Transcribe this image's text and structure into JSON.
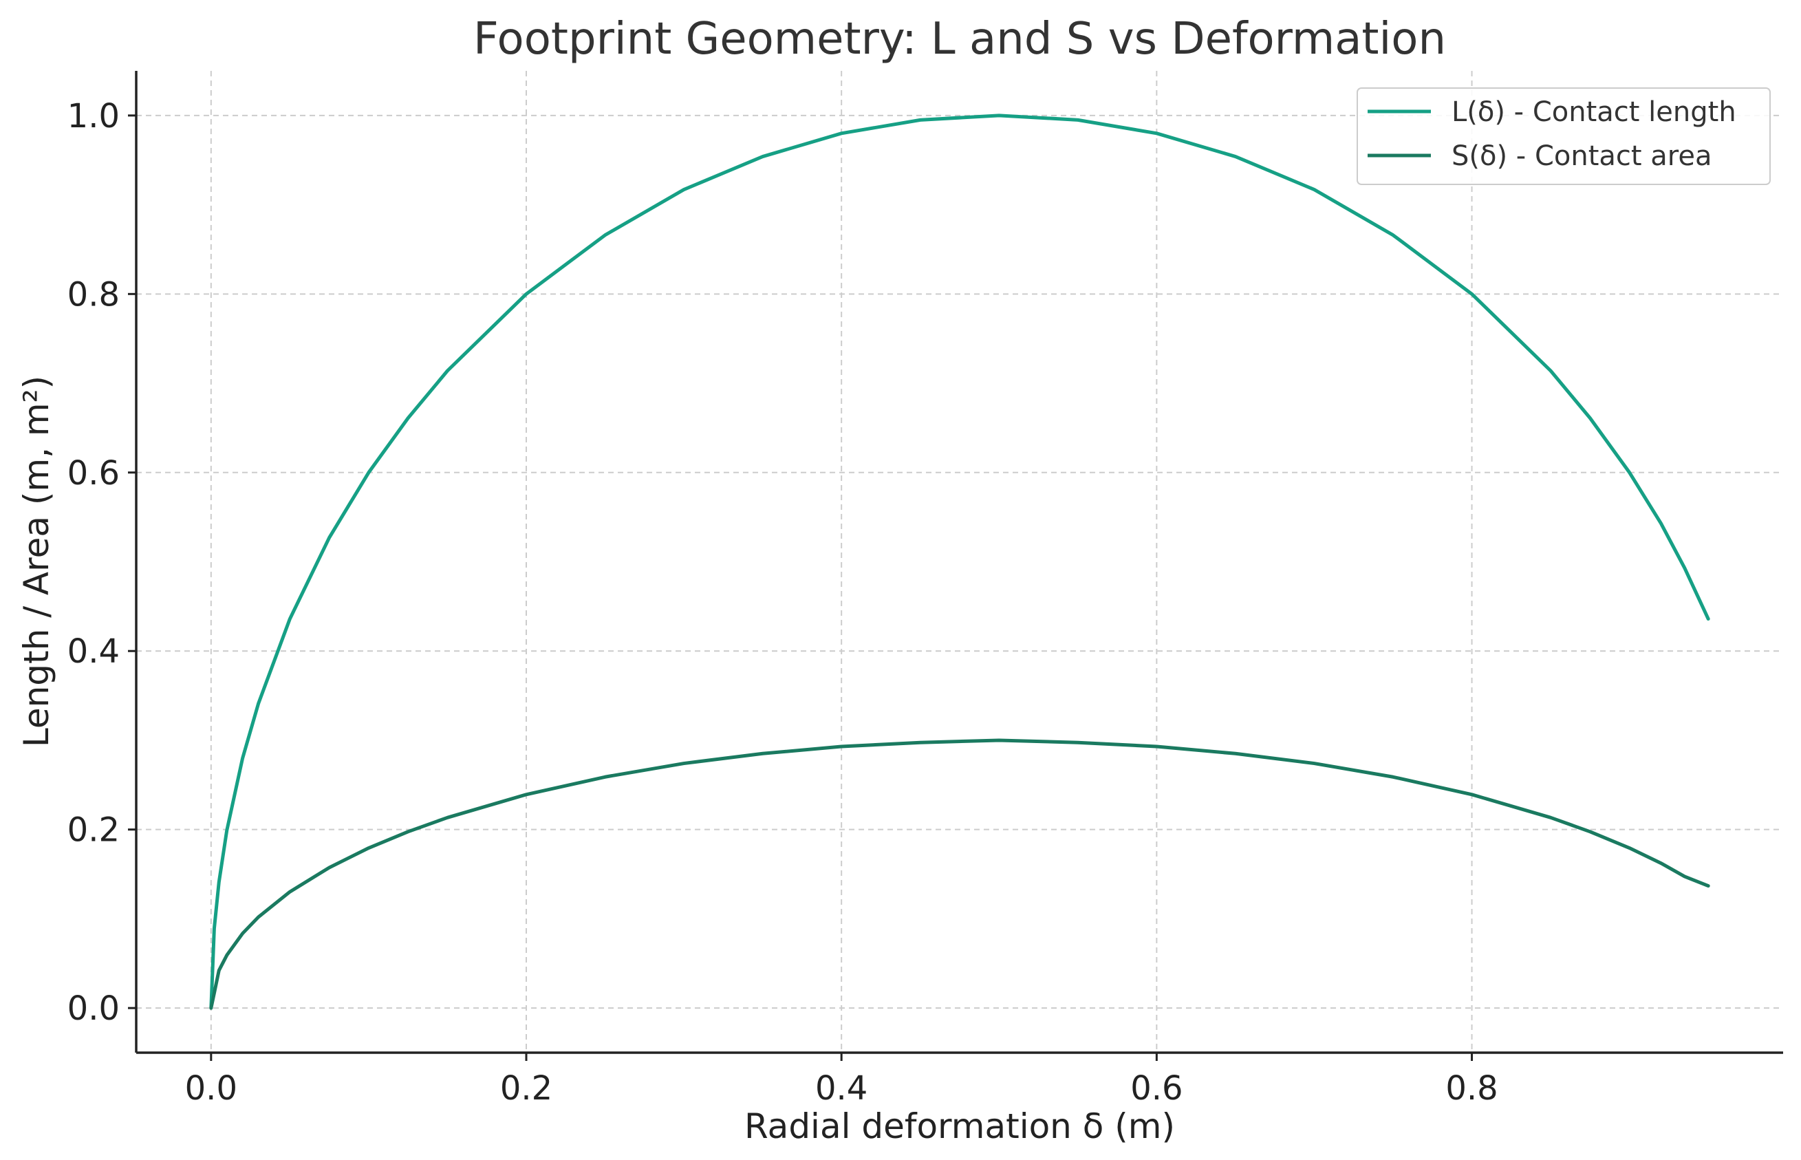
{
  "chart_data": {
    "type": "line",
    "title": "Footprint Geometry: L and S vs Deformation",
    "xlabel": "Radial deformation δ (m)",
    "ylabel": "Length / Area (m, m²)",
    "xlim": [
      -0.0475,
      0.9975
    ],
    "ylim": [
      -0.05,
      1.05
    ],
    "xticks": [
      0.0,
      0.2,
      0.4,
      0.6,
      0.8
    ],
    "xtick_labels": [
      "0.0",
      "0.2",
      "0.4",
      "0.6",
      "0.8"
    ],
    "yticks": [
      0.0,
      0.2,
      0.4,
      0.6,
      0.8,
      1.0
    ],
    "ytick_labels": [
      "0.0",
      "0.2",
      "0.4",
      "0.6",
      "0.8",
      "1.0"
    ],
    "grid": true,
    "legend_position": "top-right",
    "series": [
      {
        "name": "L(δ) - Contact length",
        "color": "#16a085",
        "x": [
          0.0,
          0.002,
          0.005,
          0.01,
          0.02,
          0.03,
          0.05,
          0.075,
          0.1,
          0.125,
          0.15,
          0.2,
          0.25,
          0.3,
          0.35,
          0.4,
          0.45,
          0.5,
          0.55,
          0.6,
          0.65,
          0.7,
          0.75,
          0.8,
          0.85,
          0.875,
          0.9,
          0.92,
          0.935,
          0.95
        ],
        "y": [
          0.0,
          0.089,
          0.141,
          0.199,
          0.28,
          0.341,
          0.436,
          0.527,
          0.6,
          0.661,
          0.714,
          0.8,
          0.866,
          0.917,
          0.954,
          0.98,
          0.995,
          1.0,
          0.995,
          0.98,
          0.954,
          0.917,
          0.866,
          0.8,
          0.714,
          0.661,
          0.6,
          0.543,
          0.493,
          0.436
        ]
      },
      {
        "name": "S(δ) - Contact area",
        "color": "#1a7a60",
        "x": [
          0.0,
          0.002,
          0.005,
          0.01,
          0.02,
          0.03,
          0.05,
          0.075,
          0.1,
          0.125,
          0.15,
          0.2,
          0.25,
          0.3,
          0.35,
          0.4,
          0.45,
          0.5,
          0.55,
          0.6,
          0.65,
          0.7,
          0.75,
          0.8,
          0.85,
          0.875,
          0.9,
          0.92,
          0.935,
          0.95
        ],
        "y": [
          0.0,
          0.0167,
          0.0421,
          0.0592,
          0.0836,
          0.1019,
          0.1302,
          0.1574,
          0.1793,
          0.1976,
          0.2134,
          0.2392,
          0.2589,
          0.2741,
          0.2851,
          0.293,
          0.2975,
          0.3,
          0.2975,
          0.293,
          0.2851,
          0.2741,
          0.2589,
          0.2392,
          0.2134,
          0.1976,
          0.1793,
          0.1623,
          0.1474,
          0.1369
        ]
      }
    ]
  }
}
